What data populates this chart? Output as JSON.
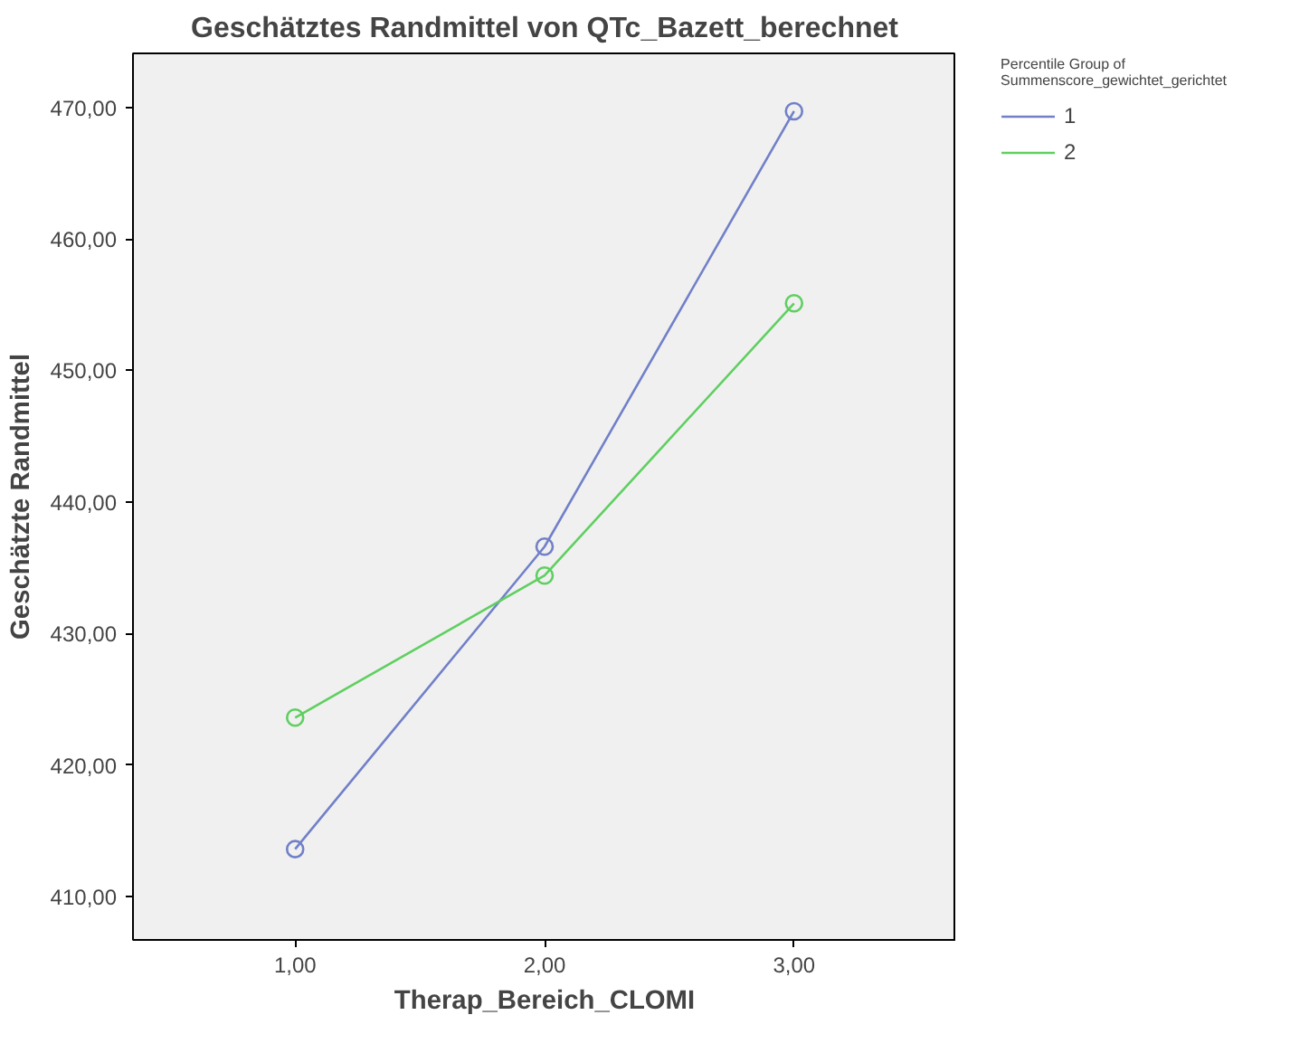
{
  "chart_data": {
    "type": "line",
    "title": "Geschätztes Randmittel von QTc_Bazett_berechnet",
    "xlabel": "Therap_Bereich_CLOMI",
    "ylabel": "Geschätzte Randmittel",
    "legend_title": "Percentile Group of\nSummenscore_gewichtet_gerichtet",
    "x": [
      1,
      2,
      3
    ],
    "series": [
      {
        "name": "1",
        "color": "#7180c8",
        "values": [
          413.6,
          436.6,
          469.7
        ]
      },
      {
        "name": "2",
        "color": "#5fcf60",
        "values": [
          423.6,
          434.4,
          455.1
        ]
      }
    ],
    "xlim": [
      0.35,
      3.65
    ],
    "ylim": [
      406.7,
      474.1
    ],
    "xticks": [
      {
        "value": 1,
        "label": "1,00"
      },
      {
        "value": 2,
        "label": "2,00"
      },
      {
        "value": 3,
        "label": "3,00"
      }
    ],
    "yticks": [
      {
        "value": 410,
        "label": "410,00"
      },
      {
        "value": 420,
        "label": "420,00"
      },
      {
        "value": 430,
        "label": "430,00"
      },
      {
        "value": 440,
        "label": "440,00"
      },
      {
        "value": 450,
        "label": "450,00"
      },
      {
        "value": 460,
        "label": "460,00"
      },
      {
        "value": 470,
        "label": "470,00"
      }
    ],
    "marker": "circle",
    "line_style": "solid",
    "grid": false,
    "legend": "top right"
  }
}
